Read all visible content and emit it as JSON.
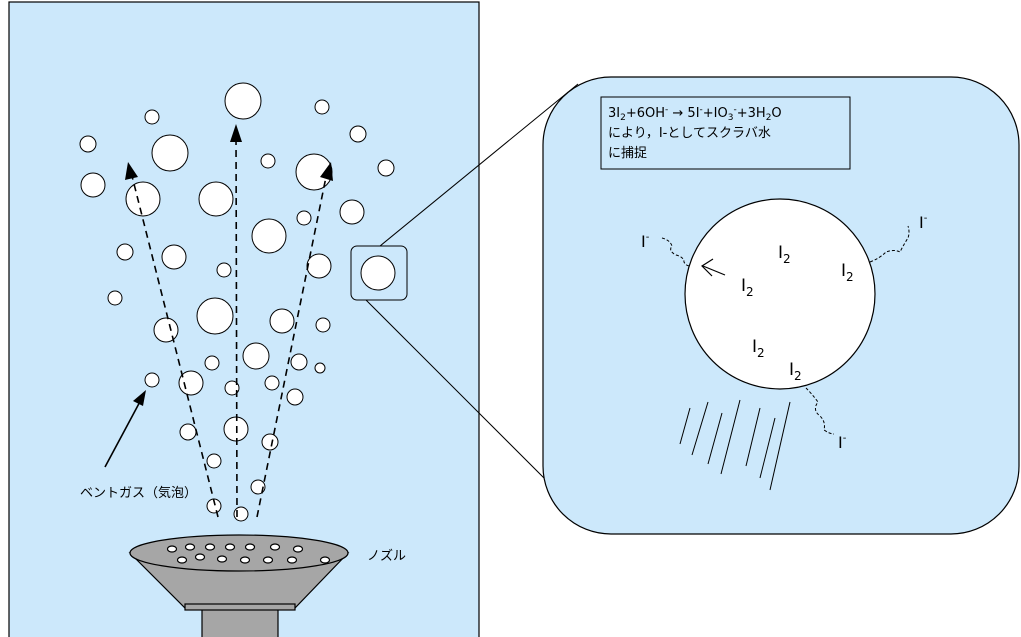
{
  "labels": {
    "vent_gas": "ベントガス（気泡）",
    "nozzle": "ノズル"
  },
  "reaction": {
    "line1": "3I2+6OH- → 5I-+IO3-+3H2O",
    "line2": "により，I-としてスクラバ水",
    "line3": "に捕捉"
  },
  "species": {
    "i2": "I",
    "i2_sub": "2",
    "iodide": "I",
    "iodide_sup": "-"
  },
  "colors": {
    "water": "#cce8fb",
    "bubble": "#ffffff",
    "nozzle": "#a6a6a6",
    "stroke": "#000000"
  }
}
